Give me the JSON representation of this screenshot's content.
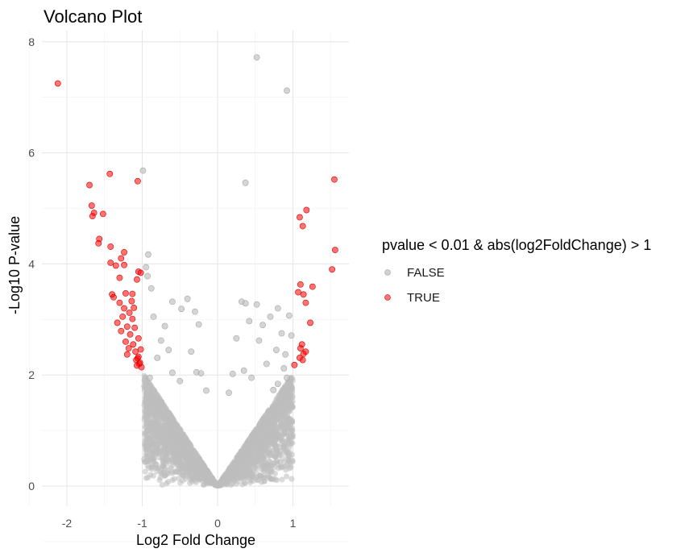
{
  "chart_data": {
    "type": "scatter",
    "title": "Volcano Plot",
    "xlabel": "Log2 Fold Change",
    "ylabel": "-Log10 P-value",
    "xlim": [
      -2.3,
      1.75
    ],
    "ylim": [
      -0.4,
      8.2
    ],
    "x_ticks": [
      -2,
      -1,
      0,
      1
    ],
    "y_ticks": [
      0,
      2,
      4,
      6,
      8
    ],
    "grid": true,
    "legend": {
      "title": "pvalue < 0.01 & abs(log2FoldChange) > 1",
      "placement": "right",
      "entries": [
        {
          "label": "FALSE",
          "color": "#bebebe"
        },
        {
          "label": "TRUE",
          "color": "#ff0000"
        }
      ]
    },
    "series": [
      {
        "name": "FALSE",
        "color": "#bebebe",
        "points": [
          [
            0.52,
            7.72
          ],
          [
            0.92,
            7.12
          ],
          [
            -0.99,
            5.68
          ],
          [
            0.37,
            5.46
          ],
          [
            -0.92,
            4.17
          ],
          [
            -0.95,
            3.94
          ],
          [
            -0.93,
            3.78
          ],
          [
            -0.88,
            3.56
          ],
          [
            -0.6,
            3.32
          ],
          [
            -0.4,
            3.37
          ],
          [
            -0.48,
            3.19
          ],
          [
            -0.3,
            3.14
          ],
          [
            0.32,
            3.32
          ],
          [
            0.37,
            3.29
          ],
          [
            0.52,
            3.27
          ],
          [
            0.8,
            3.2
          ],
          [
            0.7,
            3.05
          ],
          [
            0.95,
            3.07
          ],
          [
            0.42,
            2.97
          ],
          [
            -0.85,
            3.05
          ],
          [
            -0.7,
            2.88
          ],
          [
            -0.25,
            2.91
          ],
          [
            0.6,
            2.9
          ],
          [
            0.85,
            2.75
          ],
          [
            0.98,
            2.71
          ],
          [
            -0.75,
            2.62
          ],
          [
            0.25,
            2.66
          ],
          [
            0.55,
            2.62
          ],
          [
            -0.65,
            2.45
          ],
          [
            -0.35,
            2.42
          ],
          [
            0.78,
            2.45
          ],
          [
            0.9,
            2.37
          ],
          [
            -0.28,
            2.05
          ],
          [
            -0.22,
            2.03
          ],
          [
            0.35,
            2.08
          ],
          [
            -0.8,
            2.31
          ],
          [
            0.65,
            2.2
          ],
          [
            0.88,
            2.12
          ],
          [
            0.92,
            1.95
          ],
          [
            0.74,
            1.73
          ],
          [
            -0.6,
            2.04
          ],
          [
            -0.5,
            1.89
          ],
          [
            0.45,
            1.95
          ],
          [
            0.2,
            2.02
          ],
          [
            -0.15,
            1.72
          ],
          [
            0.15,
            1.68
          ],
          [
            -0.9,
            1.95
          ],
          [
            0.8,
            1.84
          ]
        ]
      },
      {
        "name": "TRUE",
        "color": "#ff0000",
        "points": [
          [
            -2.12,
            7.25
          ],
          [
            -1.43,
            5.62
          ],
          [
            -1.06,
            5.49
          ],
          [
            -1.7,
            5.42
          ],
          [
            -1.67,
            5.05
          ],
          [
            -1.64,
            4.92
          ],
          [
            -1.66,
            4.86
          ],
          [
            -1.52,
            4.9
          ],
          [
            -1.57,
            4.45
          ],
          [
            -1.58,
            4.37
          ],
          [
            -1.42,
            4.31
          ],
          [
            -1.24,
            4.21
          ],
          [
            -1.28,
            4.1
          ],
          [
            -1.35,
            3.97
          ],
          [
            -1.42,
            4.02
          ],
          [
            -1.24,
            3.98
          ],
          [
            -1.05,
            3.86
          ],
          [
            -1.02,
            3.84
          ],
          [
            -1.07,
            3.72
          ],
          [
            -1.3,
            3.75
          ],
          [
            -1.4,
            3.45
          ],
          [
            -1.22,
            3.47
          ],
          [
            -1.13,
            3.46
          ],
          [
            -1.38,
            3.4
          ],
          [
            -1.3,
            3.3
          ],
          [
            -1.14,
            3.33
          ],
          [
            -1.11,
            3.21
          ],
          [
            -1.24,
            3.2
          ],
          [
            -1.17,
            3.12
          ],
          [
            -1.26,
            3.05
          ],
          [
            -1.13,
            3.01
          ],
          [
            -1.33,
            2.94
          ],
          [
            -1.2,
            2.87
          ],
          [
            -1.1,
            2.85
          ],
          [
            -1.28,
            2.79
          ],
          [
            -1.16,
            2.73
          ],
          [
            -1.05,
            2.66
          ],
          [
            -1.22,
            2.6
          ],
          [
            -1.12,
            2.55
          ],
          [
            -1.18,
            2.48
          ],
          [
            -1.02,
            2.46
          ],
          [
            -1.09,
            2.42
          ],
          [
            -1.2,
            2.37
          ],
          [
            -1.05,
            2.33
          ],
          [
            -1.08,
            2.27
          ],
          [
            -1.03,
            2.22
          ],
          [
            -1.07,
            2.17
          ],
          [
            -1.01,
            2.14
          ],
          [
            -1.04,
            2.2
          ],
          [
            -1.06,
            2.3
          ],
          [
            1.55,
            5.52
          ],
          [
            1.18,
            4.97
          ],
          [
            1.09,
            4.84
          ],
          [
            1.13,
            4.68
          ],
          [
            1.56,
            4.25
          ],
          [
            1.52,
            3.9
          ],
          [
            1.1,
            3.63
          ],
          [
            1.26,
            3.59
          ],
          [
            1.14,
            3.45
          ],
          [
            1.07,
            3.49
          ],
          [
            1.17,
            3.3
          ],
          [
            1.23,
            2.94
          ],
          [
            1.12,
            2.55
          ],
          [
            1.1,
            2.48
          ],
          [
            1.17,
            2.42
          ],
          [
            1.14,
            2.38
          ],
          [
            1.09,
            2.31
          ],
          [
            1.13,
            2.27
          ],
          [
            1.02,
            2.18
          ]
        ]
      }
    ]
  }
}
